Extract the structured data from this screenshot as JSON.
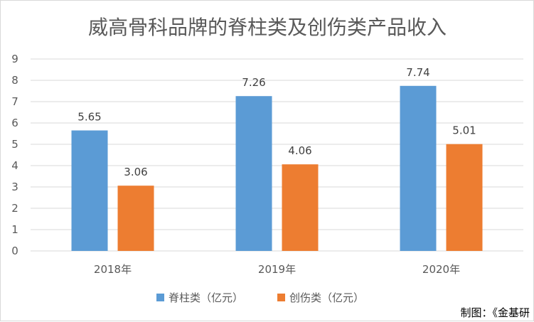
{
  "chart_data": {
    "type": "bar",
    "title": "威高骨科品牌的脊柱类及创伤类产品收入",
    "categories": [
      "2018年",
      "2019年",
      "2020年"
    ],
    "series": [
      {
        "name": "脊柱类（亿元）",
        "values": [
          5.65,
          7.26,
          7.74
        ],
        "color": "#5b9bd5"
      },
      {
        "name": "创伤类（亿元）",
        "values": [
          3.06,
          4.06,
          5.01
        ],
        "color": "#ed7d31"
      }
    ],
    "ylim": [
      0,
      9
    ],
    "yticks": [
      0,
      1,
      2,
      3,
      4,
      5,
      6,
      7,
      8,
      9
    ],
    "grid": true,
    "legend": "bottom"
  },
  "credit": "制图：《金基研"
}
